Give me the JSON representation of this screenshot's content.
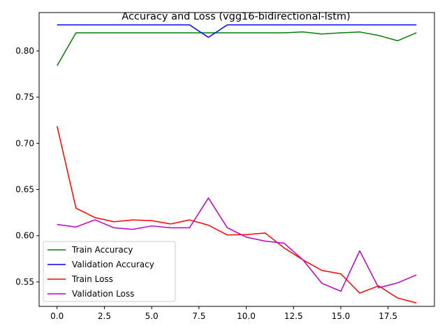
{
  "chart_data": {
    "type": "line",
    "title": "Accuracy and Loss (vgg16-bidirectional-lstm)",
    "xlabel": "",
    "ylabel": "",
    "x": [
      0,
      1,
      2,
      3,
      4,
      5,
      6,
      7,
      8,
      9,
      10,
      11,
      12,
      13,
      14,
      15,
      16,
      17,
      18,
      19
    ],
    "xlim": [
      -0.95,
      19.95
    ],
    "ylim": [
      0.5235,
      0.8415
    ],
    "xticks": [
      0.0,
      2.5,
      5.0,
      7.5,
      10.0,
      12.5,
      15.0,
      17.5
    ],
    "xtick_labels": [
      "0.0",
      "2.5",
      "5.0",
      "7.5",
      "10.0",
      "12.5",
      "15.0",
      "17.5"
    ],
    "yticks": [
      0.55,
      0.6,
      0.65,
      0.7,
      0.75,
      0.8
    ],
    "ytick_labels": [
      "0.55",
      "0.60",
      "0.65",
      "0.70",
      "0.75",
      "0.80"
    ],
    "grid": false,
    "legend_position": "lower-left",
    "series": [
      {
        "name": "Train Accuracy",
        "color": "#008000",
        "values": [
          0.784,
          0.8196,
          0.8196,
          0.8196,
          0.8196,
          0.8196,
          0.8196,
          0.8196,
          0.8196,
          0.8196,
          0.8196,
          0.8196,
          0.8196,
          0.8205,
          0.8183,
          0.8196,
          0.8205,
          0.8167,
          0.811,
          0.8196
        ]
      },
      {
        "name": "Validation Accuracy",
        "color": "#0000ff",
        "values": [
          0.8282,
          0.8282,
          0.8282,
          0.8282,
          0.8282,
          0.8282,
          0.8282,
          0.8282,
          0.8147,
          0.8282,
          0.8282,
          0.8282,
          0.8282,
          0.8282,
          0.8282,
          0.8282,
          0.8282,
          0.8282,
          0.8282,
          0.8282
        ]
      },
      {
        "name": "Train Loss",
        "color": "#ff0000",
        "values": [
          0.7185,
          0.6298,
          0.6196,
          0.6151,
          0.6171,
          0.6163,
          0.6127,
          0.6171,
          0.6114,
          0.6008,
          0.6012,
          0.6029,
          0.5868,
          0.5738,
          0.5624,
          0.5587,
          0.5379,
          0.5457,
          0.5326,
          0.5273
        ]
      },
      {
        "name": "Validation Loss",
        "color": "#bf00bf",
        "values": [
          0.6122,
          0.6094,
          0.6172,
          0.6086,
          0.6069,
          0.6106,
          0.6086,
          0.6086,
          0.6408,
          0.6086,
          0.5985,
          0.5941,
          0.5919,
          0.5738,
          0.5485,
          0.5399,
          0.5836,
          0.5436,
          0.5489,
          0.5575
        ]
      }
    ]
  }
}
